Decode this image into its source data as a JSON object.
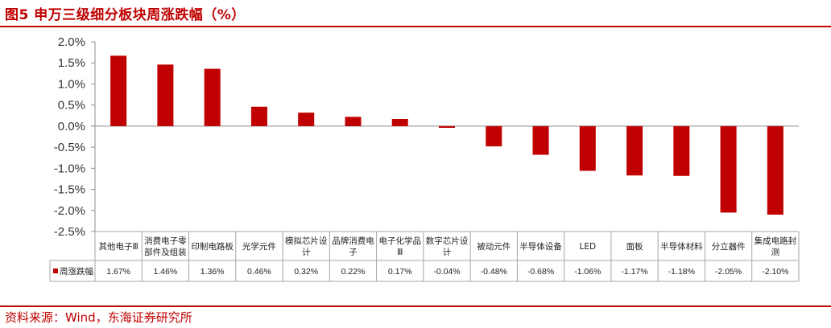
{
  "figure": {
    "title": "图5  申万三级细分板块周涨跌幅（%）",
    "source": "资料来源：Wind，东海证券研究所"
  },
  "chart_data": {
    "type": "bar",
    "title": "",
    "xlabel": "",
    "ylabel": "",
    "ylim": [
      -2.5,
      2.0
    ],
    "yticks": [
      "2.0%",
      "1.5%",
      "1.0%",
      "0.5%",
      "0.0%",
      "-0.5%",
      "-1.0%",
      "-1.5%",
      "-2.0%",
      "-2.5%"
    ],
    "grid": false,
    "bar_color": "#c00000",
    "categories": [
      [
        "其他电子Ⅲ"
      ],
      [
        "消费电子零",
        "部件及组装"
      ],
      [
        "印制电路板"
      ],
      [
        "光学元件"
      ],
      [
        "模拟芯片设",
        "计"
      ],
      [
        "品牌消费电",
        "子"
      ],
      [
        "电子化学品",
        "Ⅲ"
      ],
      [
        "数字芯片设",
        "计"
      ],
      [
        "被动元件"
      ],
      [
        "半导体设备"
      ],
      [
        "LED"
      ],
      [
        "面板"
      ],
      [
        "半导体材料"
      ],
      [
        "分立器件"
      ],
      [
        "集成电路封",
        "测"
      ]
    ],
    "series": [
      {
        "name": "周涨跌幅",
        "values": [
          1.67,
          1.46,
          1.36,
          0.46,
          0.32,
          0.22,
          0.17,
          -0.04,
          -0.48,
          -0.68,
          -1.06,
          -1.17,
          -1.18,
          -2.05,
          -2.1
        ],
        "labels": [
          "1.67%",
          "1.46%",
          "1.36%",
          "0.46%",
          "0.32%",
          "0.22%",
          "0.17%",
          "-0.04%",
          "-0.48%",
          "-0.68%",
          "-1.06%",
          "-1.17%",
          "-1.18%",
          "-2.05%",
          "-2.10%"
        ]
      }
    ],
    "legend_position": "table-left"
  }
}
